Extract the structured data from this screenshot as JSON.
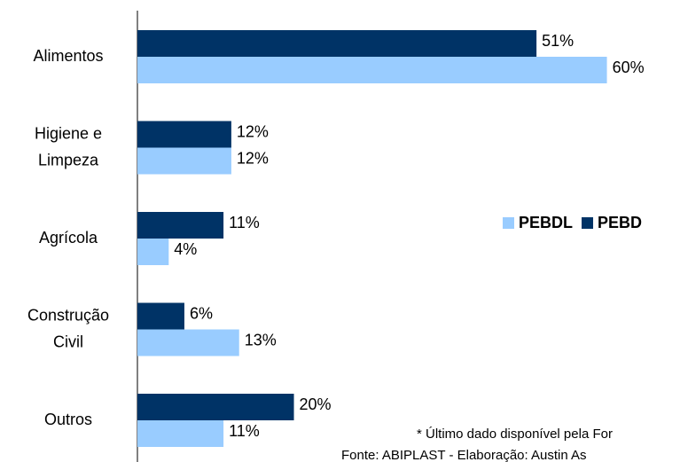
{
  "chart_data": {
    "type": "barh",
    "categories": [
      "Alimentos",
      "Higiene e\nLimpeza",
      "Agrícola",
      "Construção\nCivil",
      "Outros"
    ],
    "series": [
      {
        "name": "PEBD",
        "color": "#003366",
        "values": [
          51,
          12,
          11,
          6,
          20
        ],
        "value_labels": [
          "51%",
          "12%",
          "11%",
          "6%",
          "20%"
        ]
      },
      {
        "name": "PEBDL",
        "color": "#99ccff",
        "values": [
          60,
          12,
          4,
          13,
          11
        ],
        "value_labels": [
          "60%",
          "12%",
          "4%",
          "13%",
          "11%"
        ]
      }
    ],
    "xlim": [
      0,
      69
    ],
    "legend": "right",
    "annotations": [
      "* Último dado disponível pela For",
      "Fonte: ABIPLAST - Elaboração: Austin As"
    ]
  }
}
